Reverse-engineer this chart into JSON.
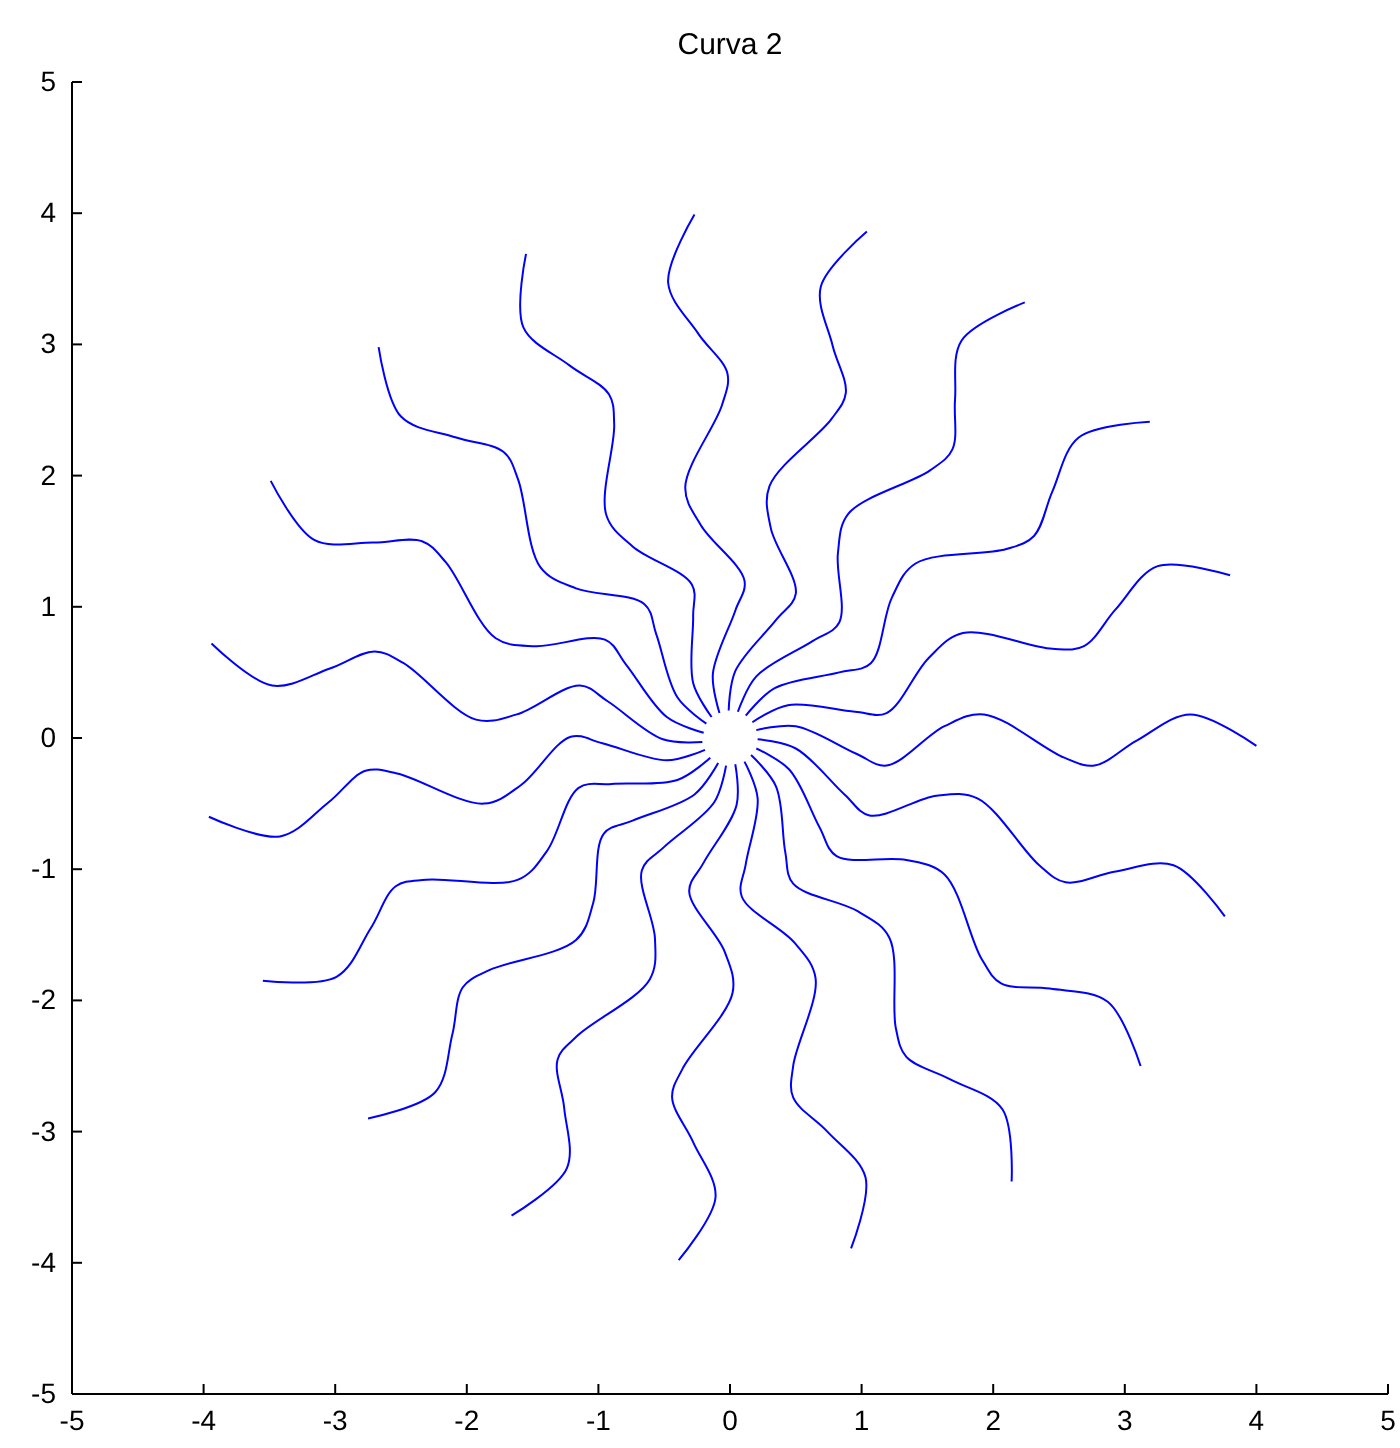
{
  "chart_data": {
    "type": "line",
    "title": "Curva 2",
    "xlim": [
      -5,
      5
    ],
    "ylim": [
      -5,
      5
    ],
    "xticks": [
      -5,
      -4,
      -3,
      -2,
      -1,
      0,
      1,
      2,
      3,
      4,
      5
    ],
    "yticks": [
      -5,
      -4,
      -3,
      -2,
      -1,
      0,
      1,
      2,
      3,
      4,
      5
    ],
    "grid": false,
    "series": [
      {
        "color": "#0000ff",
        "x": [
          0.2,
          0.5,
          0.96,
          1.19,
          1.63,
          1.93,
          2.54,
          2.77,
          3.09,
          3.5,
          4.0
        ],
        "values": [
          0.06,
          0.09,
          -0.12,
          -0.21,
          0.09,
          0.18,
          -0.15,
          -0.21,
          -0.02,
          0.18,
          -0.06
        ]
      },
      {
        "color": "#0000ff",
        "x": [
          0.17,
          0.44,
          0.95,
          1.19,
          1.51,
          1.77,
          2.45,
          2.69,
          2.93,
          3.25,
          3.8
        ],
        "values": [
          0.12,
          0.25,
          0.2,
          0.19,
          0.61,
          0.8,
          0.68,
          0.7,
          0.98,
          1.31,
          1.24
        ]
      },
      {
        "color": "#0000ff",
        "x": [
          0.12,
          0.34,
          0.83,
          1.07,
          1.23,
          1.41,
          2.1,
          2.31,
          2.45,
          2.65,
          3.19
        ],
        "values": [
          0.17,
          0.38,
          0.5,
          0.57,
          1.07,
          1.33,
          1.44,
          1.54,
          1.88,
          2.29,
          2.41
        ]
      },
      {
        "color": "#0000ff",
        "x": [
          0.06,
          0.2,
          0.63,
          0.83,
          0.82,
          0.9,
          1.52,
          1.69,
          1.71,
          1.76,
          2.24
        ],
        "values": [
          0.2,
          0.47,
          0.74,
          0.88,
          1.41,
          1.71,
          2.04,
          2.2,
          2.58,
          3.03,
          3.32
        ]
      },
      {
        "color": "#0000ff",
        "x": [
          -0.01,
          0.04,
          0.35,
          0.5,
          0.31,
          0.3,
          0.77,
          0.88,
          0.78,
          0.69,
          1.04
        ],
        "values": [
          0.21,
          0.51,
          0.9,
          1.1,
          1.6,
          1.92,
          2.43,
          2.63,
          2.99,
          3.44,
          3.86
        ]
      },
      {
        "color": "#0000ff",
        "x": [
          -0.08,
          -0.13,
          0.04,
          0.11,
          -0.22,
          -0.34,
          -0.06,
          -0.02,
          -0.24,
          -0.47,
          -0.27
        ],
        "values": [
          0.19,
          0.49,
          0.97,
          1.2,
          1.62,
          1.91,
          2.54,
          2.78,
          3.08,
          3.47,
          3.99
        ]
      },
      {
        "color": "#0000ff",
        "x": [
          -0.14,
          -0.28,
          -0.28,
          -0.29,
          -0.74,
          -0.94,
          -0.88,
          -0.92,
          -1.22,
          -1.57,
          -1.55
        ],
        "values": [
          0.16,
          0.42,
          0.93,
          1.17,
          1.46,
          1.7,
          2.39,
          2.62,
          2.84,
          3.13,
          3.69
        ]
      },
      {
        "color": "#0000ff",
        "x": [
          -0.18,
          -0.4,
          -0.56,
          -0.65,
          -1.17,
          -1.44,
          -1.61,
          -1.72,
          -2.08,
          -2.5,
          -2.67
        ],
        "values": [
          0.11,
          0.31,
          0.79,
          1.02,
          1.14,
          1.3,
          1.97,
          2.18,
          2.29,
          2.45,
          2.98
        ]
      },
      {
        "color": "#0000ff",
        "x": [
          -0.2,
          -0.48,
          -0.79,
          -0.95,
          -1.48,
          -1.78,
          -2.16,
          -2.34,
          -2.71,
          -3.16,
          -3.49
        ],
        "values": [
          0.04,
          0.16,
          0.56,
          0.75,
          0.7,
          0.76,
          1.34,
          1.5,
          1.49,
          1.51,
          1.96
        ]
      },
      {
        "color": "#0000ff",
        "x": [
          -0.21,
          -0.51,
          -0.93,
          -1.14,
          -1.62,
          -1.93,
          -2.48,
          -2.7,
          -3.04,
          -3.48,
          -3.94
        ],
        "values": [
          -0.03,
          -0.01,
          0.28,
          0.4,
          0.18,
          0.14,
          0.57,
          0.66,
          0.53,
          0.4,
          0.72
        ]
      },
      {
        "color": "#0000ff",
        "x": [
          -0.19,
          -0.48,
          -0.97,
          -1.21,
          -1.59,
          -1.87,
          -2.53,
          -2.77,
          -3.05,
          -3.42,
          -3.96
        ],
        "values": [
          -0.09,
          -0.17,
          -0.04,
          0.01,
          -0.36,
          -0.5,
          -0.27,
          -0.25,
          -0.49,
          -0.75,
          -0.6
        ]
      },
      {
        "color": "#0000ff",
        "x": [
          -0.15,
          -0.4,
          -0.9,
          -1.15,
          -1.39,
          -1.61,
          -2.31,
          -2.54,
          -2.73,
          -2.99,
          -3.55
        ],
        "values": [
          -0.15,
          -0.32,
          -0.35,
          -0.38,
          -0.86,
          -1.08,
          -1.08,
          -1.13,
          -1.45,
          -1.82,
          -1.85
        ]
      },
      {
        "color": "#0000ff",
        "x": [
          -0.09,
          -0.27,
          -0.74,
          -0.96,
          -1.04,
          -1.17,
          -1.83,
          -2.03,
          -2.11,
          -2.24,
          -2.75
        ],
        "values": [
          -0.19,
          -0.43,
          -0.63,
          -0.73,
          -1.26,
          -1.54,
          -1.77,
          -1.9,
          -2.26,
          -2.7,
          -2.9
        ]
      },
      {
        "color": "#0000ff",
        "x": [
          -0.03,
          -0.12,
          -0.5,
          -0.67,
          -0.57,
          -0.61,
          -1.16,
          -1.31,
          -1.26,
          -1.24,
          -1.66
        ],
        "values": [
          -0.21,
          -0.49,
          -0.83,
          -1.01,
          -1.53,
          -1.84,
          -2.27,
          -2.45,
          -2.82,
          -3.28,
          -3.64
        ]
      },
      {
        "color": "#0000ff",
        "x": [
          0.04,
          0.05,
          -0.2,
          -0.31,
          -0.04,
          0.02,
          -0.36,
          -0.44,
          -0.28,
          -0.11,
          -0.39
        ],
        "values": [
          -0.2,
          -0.51,
          -0.95,
          -1.17,
          -1.63,
          -1.94,
          -2.52,
          -2.74,
          -3.08,
          -3.5,
          -3.98
        ]
      },
      {
        "color": "#0000ff",
        "x": [
          0.11,
          0.21,
          0.12,
          0.09,
          0.49,
          0.65,
          0.48,
          0.48,
          0.74,
          1.03,
          0.92
        ],
        "values": [
          -0.18,
          -0.46,
          -0.96,
          -1.21,
          -1.56,
          -1.83,
          -2.5,
          -2.74,
          -3.0,
          -3.35,
          -3.89
        ]
      },
      {
        "color": "#0000ff",
        "x": [
          0.16,
          0.35,
          0.42,
          0.48,
          0.97,
          1.21,
          1.26,
          1.34,
          1.67,
          2.07,
          2.14
        ],
        "values": [
          -0.13,
          -0.37,
          -0.87,
          -1.11,
          -1.32,
          -1.52,
          -2.21,
          -2.43,
          -2.6,
          -2.83,
          -3.38
        ]
      },
      {
        "color": "#0000ff",
        "x": [
          0.2,
          0.45,
          0.68,
          0.81,
          1.34,
          1.63,
          1.91,
          2.06,
          2.43,
          2.87,
          3.12
        ],
        "values": [
          -0.08,
          -0.24,
          -0.68,
          -0.9,
          -0.93,
          -1.04,
          -1.68,
          -1.87,
          -1.91,
          -2.01,
          -2.5
        ]
      },
      {
        "color": "#0000ff",
        "x": [
          0.21,
          0.5,
          0.87,
          1.06,
          1.57,
          1.88,
          2.35,
          2.55,
          2.92,
          3.37,
          3.76
        ],
        "values": [
          -0.01,
          -0.08,
          -0.43,
          -0.59,
          -0.44,
          -0.46,
          -0.97,
          -1.1,
          -1.02,
          -0.97,
          -1.36
        ]
      }
    ]
  }
}
